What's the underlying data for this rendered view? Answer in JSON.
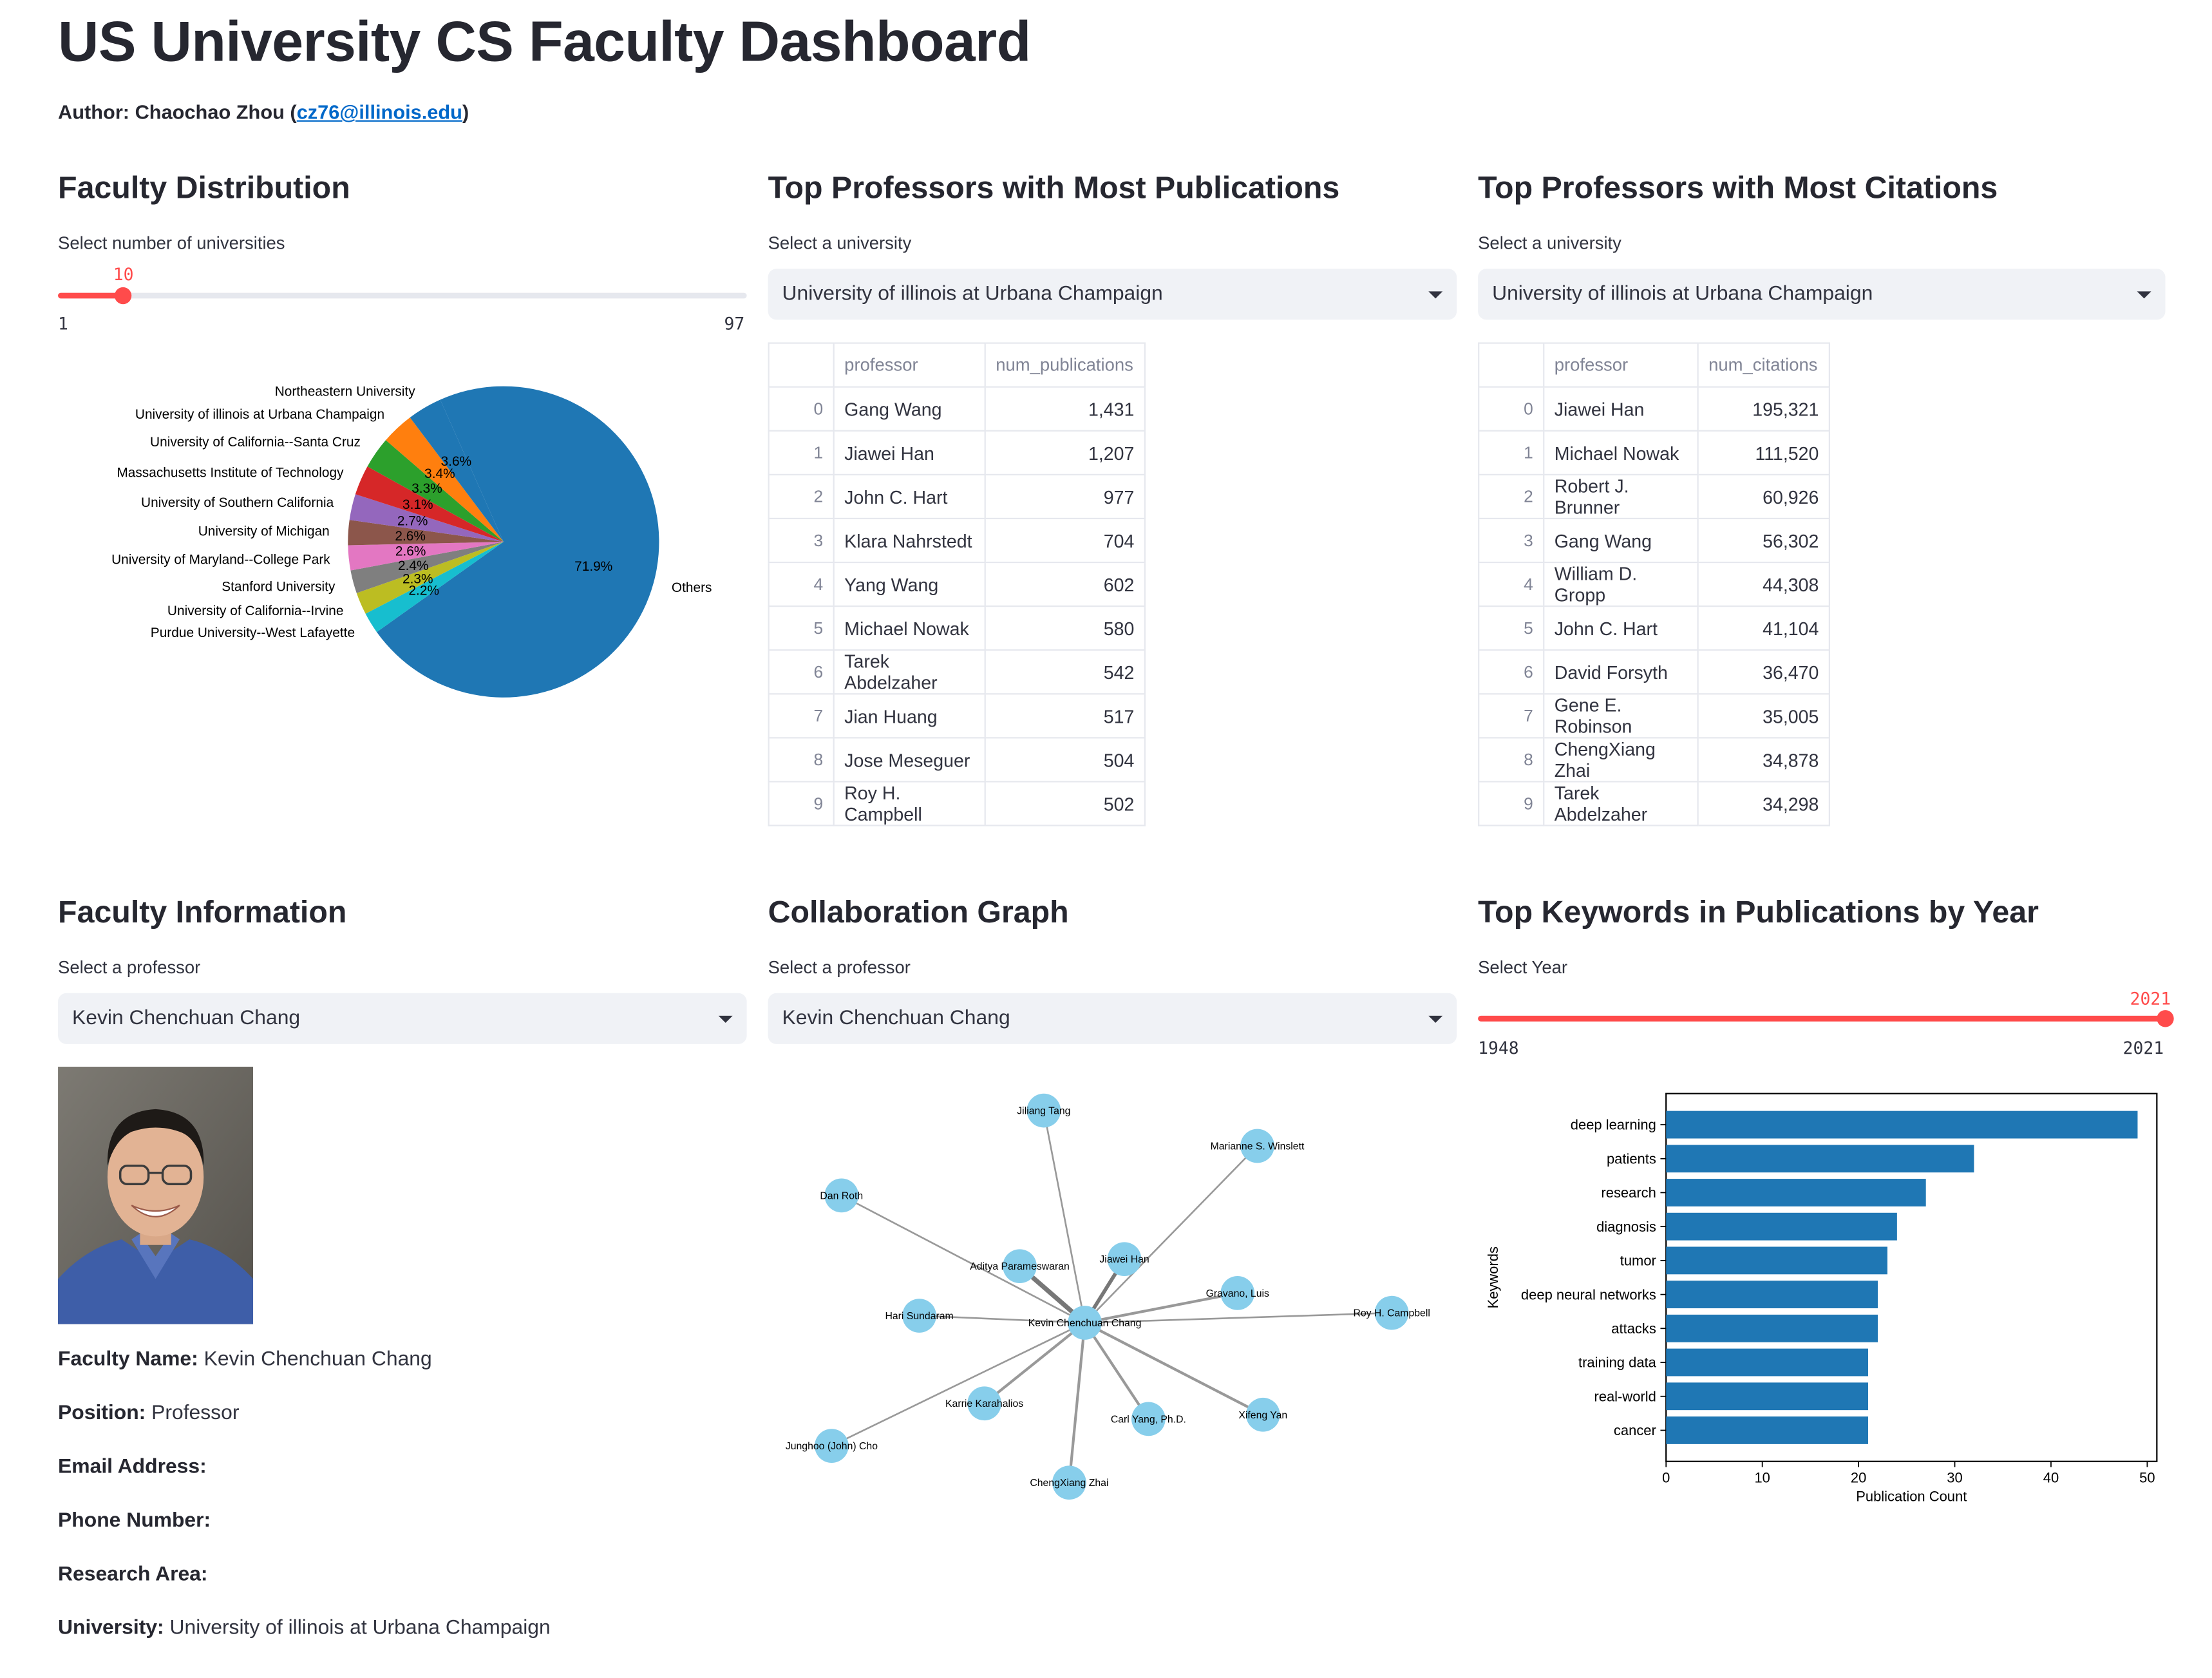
{
  "header": {
    "title": "US University CS Faculty Dashboard",
    "author_prefix": "Author: Chaochao Zhou (",
    "author_email": "cz76@illinois.edu",
    "author_suffix": ")"
  },
  "faculty_distribution": {
    "heading": "Faculty Distribution",
    "slider_label": "Select number of universities",
    "slider_value": "10",
    "slider_min": "1",
    "slider_max": "97",
    "slider_fraction": 0.09375,
    "chart_data": {
      "type": "pie",
      "slices": [
        {
          "label": "Others",
          "value": 71.9,
          "pct": "71.9%",
          "color": "#1f77b4"
        },
        {
          "label": "Purdue University--West Lafayette",
          "value": 2.2,
          "pct": "2.2%",
          "color": "#17becf"
        },
        {
          "label": "University of California--Irvine",
          "value": 2.3,
          "pct": "2.3%",
          "color": "#bcbd22"
        },
        {
          "label": "Stanford University",
          "value": 2.4,
          "pct": "2.4%",
          "color": "#7f7f7f"
        },
        {
          "label": "University of Maryland--College Park",
          "value": 2.6,
          "pct": "2.6%",
          "color": "#e377c2"
        },
        {
          "label": "University of Michigan",
          "value": 2.6,
          "pct": "2.6%",
          "color": "#8c564b"
        },
        {
          "label": "University of Southern California",
          "value": 2.7,
          "pct": "2.7%",
          "color": "#9467bd"
        },
        {
          "label": "Massachusetts Institute of Technology",
          "value": 3.1,
          "pct": "3.1%",
          "color": "#d62728"
        },
        {
          "label": "University of California--Santa Cruz",
          "value": 3.3,
          "pct": "3.3%",
          "color": "#2ca02c"
        },
        {
          "label": "University of illinois at Urbana Champaign",
          "value": 3.4,
          "pct": "3.4%",
          "color": "#ff7f0e"
        },
        {
          "label": "Northeastern University",
          "value": 3.6,
          "pct": "3.6%",
          "color": "#1f77b4"
        }
      ]
    }
  },
  "top_publications": {
    "heading": "Top Professors with Most Publications",
    "select_label": "Select a university",
    "selected": "University of illinois at Urbana Champaign",
    "columns": [
      "professor",
      "num_publications"
    ],
    "rows": [
      {
        "idx": "0",
        "name": "Gang Wang",
        "value": "1,431"
      },
      {
        "idx": "1",
        "name": "Jiawei Han",
        "value": "1,207"
      },
      {
        "idx": "2",
        "name": "John C. Hart",
        "value": "977"
      },
      {
        "idx": "3",
        "name": "Klara Nahrstedt",
        "value": "704"
      },
      {
        "idx": "4",
        "name": "Yang Wang",
        "value": "602"
      },
      {
        "idx": "5",
        "name": "Michael Nowak",
        "value": "580"
      },
      {
        "idx": "6",
        "name": "Tarek Abdelzaher",
        "value": "542"
      },
      {
        "idx": "7",
        "name": "Jian Huang",
        "value": "517"
      },
      {
        "idx": "8",
        "name": "Jose Meseguer",
        "value": "504"
      },
      {
        "idx": "9",
        "name": "Roy H. Campbell",
        "value": "502"
      }
    ]
  },
  "top_citations": {
    "heading": "Top Professors with Most Citations",
    "select_label": "Select a university",
    "selected": "University of illinois at Urbana Champaign",
    "columns": [
      "professor",
      "num_citations"
    ],
    "rows": [
      {
        "idx": "0",
        "name": "Jiawei Han",
        "value": "195,321"
      },
      {
        "idx": "1",
        "name": "Michael Nowak",
        "value": "111,520"
      },
      {
        "idx": "2",
        "name": "Robert J. Brunner",
        "value": "60,926"
      },
      {
        "idx": "3",
        "name": "Gang Wang",
        "value": "56,302"
      },
      {
        "idx": "4",
        "name": "William D. Gropp",
        "value": "44,308"
      },
      {
        "idx": "5",
        "name": "John C. Hart",
        "value": "41,104"
      },
      {
        "idx": "6",
        "name": "David Forsyth",
        "value": "36,470"
      },
      {
        "idx": "7",
        "name": "Gene E. Robinson",
        "value": "35,005"
      },
      {
        "idx": "8",
        "name": "ChengXiang Zhai",
        "value": "34,878"
      },
      {
        "idx": "9",
        "name": "Tarek Abdelzaher",
        "value": "34,298"
      }
    ]
  },
  "faculty_info": {
    "heading": "Faculty Information",
    "select_label": "Select a professor",
    "selected": "Kevin Chenchuan Chang",
    "photo_icon": "professor-photo",
    "fields": [
      {
        "label": "Faculty Name:",
        "value": "Kevin Chenchuan Chang"
      },
      {
        "label": "Position:",
        "value": "Professor"
      },
      {
        "label": "Email Address:",
        "value": ""
      },
      {
        "label": "Phone Number:",
        "value": ""
      },
      {
        "label": "Research Area:",
        "value": ""
      },
      {
        "label": "University:",
        "value": "University of illinois at Urbana Champaign"
      }
    ]
  },
  "collaboration": {
    "heading": "Collaboration Graph",
    "select_label": "Select a professor",
    "selected": "Kevin Chenchuan Chang",
    "center": "Kevin Chenchuan Chang",
    "node_color": "#87ceeb",
    "nodes": [
      {
        "name": "Jiliang Tang",
        "weight": 1
      },
      {
        "name": "Marianne S. Winslett",
        "weight": 1
      },
      {
        "name": "Dan Roth",
        "weight": 1
      },
      {
        "name": "Jiawei Han",
        "weight": 3
      },
      {
        "name": "Aditya Parameswaran",
        "weight": 4
      },
      {
        "name": "Gravano, Luis",
        "weight": 2
      },
      {
        "name": "Roy H. Campbell",
        "weight": 1
      },
      {
        "name": "Hari Sundaram",
        "weight": 1
      },
      {
        "name": "Karrie Karahalios",
        "weight": 2
      },
      {
        "name": "Carl Yang, Ph.D.",
        "weight": 2
      },
      {
        "name": "Xifeng Yan",
        "weight": 2
      },
      {
        "name": "Junghoo (John) Cho",
        "weight": 1
      },
      {
        "name": "ChengXiang Zhai",
        "weight": 2
      }
    ]
  },
  "keywords": {
    "heading": "Top Keywords in Publications by Year",
    "slider_label": "Select Year",
    "slider_value": "2021",
    "slider_min": "1948",
    "slider_max": "2021",
    "slider_fraction": 1.0,
    "chart_data": {
      "type": "bar",
      "orientation": "horizontal",
      "categories": [
        "deep learning",
        "patients",
        "research",
        "diagnosis",
        "tumor",
        "deep neural networks",
        "attacks",
        "training data",
        "real-world",
        "cancer"
      ],
      "values": [
        49,
        32,
        27,
        24,
        23,
        22,
        22,
        21,
        21,
        21
      ],
      "xlabel": "Publication Count",
      "ylabel": "Keywords",
      "xlim": [
        0,
        51
      ],
      "xticks": [
        0,
        10,
        20,
        30,
        40,
        50
      ],
      "color": "#1f77b4"
    }
  }
}
